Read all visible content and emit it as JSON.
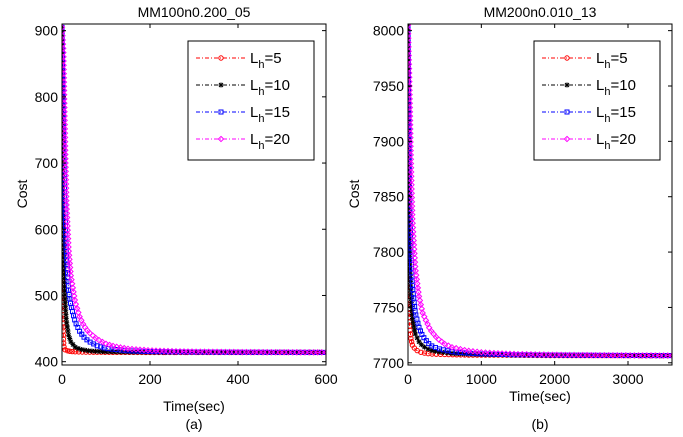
{
  "chart_data": [
    {
      "type": "line",
      "title": "MM100n0.200_05",
      "xlabel": "Time(sec)",
      "ylabel": "Cost",
      "caption": "(a)",
      "xlim": [
        0,
        600
      ],
      "ylim": [
        395,
        910
      ],
      "xticks": [
        0,
        200,
        400,
        600
      ],
      "yticks": [
        400,
        500,
        600,
        700,
        800,
        900
      ],
      "grid": false,
      "legend_position": "top-right",
      "series": [
        {
          "name": "L_h=5",
          "legend_base": "L",
          "legend_sub": "h",
          "legend_tail": "=5",
          "color": "#ff0000",
          "marker": "circle",
          "x": [
            0,
            1,
            2,
            3,
            4,
            5,
            7,
            10,
            15,
            20,
            30,
            50,
            80,
            120,
            200,
            300,
            400,
            500,
            600
          ],
          "y": [
            905,
            600,
            480,
            440,
            425,
            420,
            418,
            417,
            416,
            415.5,
            415,
            414.5,
            414.3,
            414.2,
            414,
            414,
            414,
            414,
            414
          ]
        },
        {
          "name": "L_h=10",
          "legend_base": "L",
          "legend_sub": "h",
          "legend_tail": "=10",
          "color": "#000000",
          "marker": "star",
          "x": [
            0,
            2,
            4,
            6,
            8,
            10,
            15,
            20,
            30,
            40,
            60,
            80,
            100,
            150,
            200,
            300,
            400,
            500,
            600
          ],
          "y": [
            905,
            660,
            560,
            510,
            480,
            462,
            440,
            430,
            422,
            419,
            416.5,
            415.5,
            415,
            414.5,
            414.3,
            414.1,
            414,
            414,
            414
          ]
        },
        {
          "name": "L_h=15",
          "legend_base": "L",
          "legend_sub": "h",
          "legend_tail": "=15",
          "color": "#0000ff",
          "marker": "square",
          "x": [
            0,
            3,
            6,
            10,
            15,
            20,
            30,
            40,
            50,
            60,
            80,
            100,
            150,
            200,
            250,
            300,
            400,
            500,
            600
          ],
          "y": [
            905,
            760,
            650,
            560,
            508,
            485,
            460,
            446,
            437,
            431,
            424,
            420,
            416.5,
            415.3,
            414.8,
            414.5,
            414.2,
            414.1,
            414
          ]
        },
        {
          "name": "L_h=20",
          "legend_base": "L",
          "legend_sub": "h",
          "legend_tail": "=20",
          "color": "#ff00ff",
          "marker": "diamond",
          "x": [
            0,
            3,
            5,
            8,
            10,
            15,
            20,
            30,
            40,
            50,
            60,
            80,
            100,
            120,
            150,
            200,
            250,
            300,
            400,
            500,
            600
          ],
          "y": [
            905,
            870,
            800,
            700,
            640,
            570,
            530,
            490,
            468,
            454,
            445,
            434,
            427,
            423,
            419.5,
            417,
            415.8,
            415.2,
            414.6,
            414.3,
            414.1
          ]
        }
      ]
    },
    {
      "type": "line",
      "title": "MM200n0.010_13",
      "xlabel": "Time(sec)",
      "ylabel": "Cost",
      "caption": "(b)",
      "xlim": [
        0,
        3600
      ],
      "ylim": [
        7698,
        8006
      ],
      "xticks": [
        0,
        1000,
        2000,
        3000
      ],
      "yticks": [
        7700,
        7750,
        7800,
        7850,
        7900,
        7950,
        8000
      ],
      "grid": false,
      "legend_position": "top-right",
      "series": [
        {
          "name": "L_h=5",
          "legend_base": "L",
          "legend_sub": "h",
          "legend_tail": "=5",
          "color": "#ff0000",
          "marker": "circle",
          "x": [
            0,
            10,
            20,
            40,
            60,
            100,
            150,
            200,
            300,
            500,
            800,
            1200,
            2000,
            3000,
            3600
          ],
          "y": [
            8005,
            7760,
            7735,
            7722,
            7716,
            7712,
            7710,
            7709,
            7708,
            7707.5,
            7707,
            7707,
            7706.5,
            7706.5,
            7706.5
          ]
        },
        {
          "name": "L_h=10",
          "legend_base": "L",
          "legend_sub": "h",
          "legend_tail": "=10",
          "color": "#000000",
          "marker": "star",
          "x": [
            0,
            20,
            40,
            60,
            100,
            150,
            200,
            300,
            400,
            600,
            800,
            1200,
            2000,
            3000,
            3600
          ],
          "y": [
            8005,
            7800,
            7760,
            7740,
            7726,
            7719,
            7715,
            7711.5,
            7710,
            7708.5,
            7707.8,
            7707.2,
            7706.8,
            7706.5,
            7706.5
          ]
        },
        {
          "name": "L_h=15",
          "legend_base": "L",
          "legend_sub": "h",
          "legend_tail": "=15",
          "color": "#0000ff",
          "marker": "square",
          "x": [
            0,
            20,
            40,
            60,
            100,
            150,
            200,
            300,
            400,
            600,
            800,
            1000,
            1400,
            2000,
            3000,
            3600
          ],
          "y": [
            8005,
            7860,
            7800,
            7770,
            7745,
            7732,
            7724,
            7716,
            7713,
            7710,
            7708.8,
            7708,
            7707.3,
            7706.9,
            7706.6,
            7706.5
          ]
        },
        {
          "name": "L_h=20",
          "legend_base": "L",
          "legend_sub": "h",
          "legend_tail": "=20",
          "color": "#ff00ff",
          "marker": "diamond",
          "x": [
            0,
            20,
            40,
            60,
            100,
            150,
            200,
            300,
            400,
            500,
            600,
            800,
            1000,
            1200,
            1500,
            2000,
            2500,
            3000,
            3600
          ],
          "y": [
            8005,
            7950,
            7880,
            7830,
            7785,
            7760,
            7745,
            7730,
            7722,
            7717,
            7714,
            7711,
            7709.5,
            7708.6,
            7707.8,
            7707.2,
            7706.9,
            7706.7,
            7706.5
          ]
        }
      ]
    }
  ]
}
